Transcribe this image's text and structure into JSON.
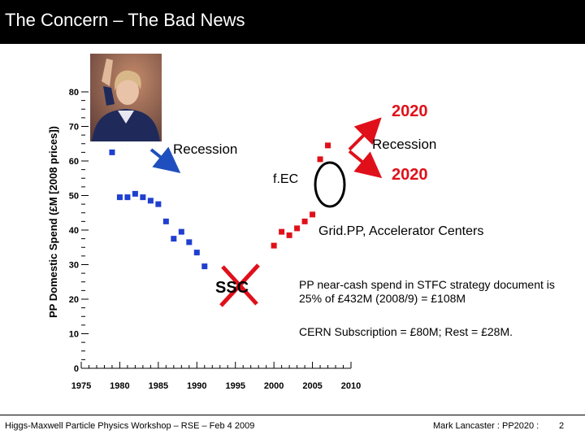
{
  "slide": {
    "title": "The Concern – The Bad News",
    "footer_left": "Higgs-Maxwell Particle Physics Workshop – RSE – Feb 4 2009",
    "footer_right": "Mark Lancaster : PP2020 :",
    "page_number": "2"
  },
  "annotations": {
    "recession_left": "Recession",
    "recession_right": "Recession",
    "fec": "f.EC",
    "label_2020_top": "2020",
    "label_2020_bottom": "2020",
    "gridpp": "Grid.PP, Accelerator Centers",
    "ssc": "SSC",
    "note_1": "PP near-cash spend in STFC strategy document is 25% of £432M (2008/9) = £108M",
    "note_2": "CERN Subscription = £80M; Rest = £28M."
  },
  "colors": {
    "early_series": "#1f3fcf",
    "recent_series": "#e0101a",
    "arrow_blue": "#1f4fbf",
    "arrow_red": "#e0101a",
    "cross_red": "#e0101a"
  },
  "chart_data": {
    "type": "scatter",
    "ylabel": "PP Domestic Spend (£M [2008 prices])",
    "xlabel": "",
    "xlim": [
      1975,
      2010
    ],
    "ylim": [
      0,
      80
    ],
    "x_ticks": [
      1975,
      1980,
      1985,
      1990,
      1995,
      2000,
      2005,
      2010
    ],
    "y_ticks": [
      0,
      10,
      20,
      30,
      40,
      50,
      60,
      70,
      80
    ],
    "series": [
      {
        "color": "#1f3fcf",
        "points": [
          [
            1979,
            62.5
          ],
          [
            1980,
            49.5
          ],
          [
            1981,
            49.5
          ],
          [
            1982,
            50.5
          ],
          [
            1983,
            49.5
          ],
          [
            1984,
            48.5
          ],
          [
            1985,
            47.5
          ],
          [
            1986,
            42.5
          ],
          [
            1987,
            37.5
          ],
          [
            1988,
            39.5
          ],
          [
            1989,
            36.5
          ],
          [
            1990,
            33.5
          ],
          [
            1991,
            29.5
          ]
        ]
      },
      {
        "color": "#e0101a",
        "points": [
          [
            2000,
            35.5
          ],
          [
            2001,
            39.5
          ],
          [
            2002,
            38.5
          ],
          [
            2003,
            40.5
          ],
          [
            2004,
            42.5
          ],
          [
            2005,
            44.5
          ],
          [
            2006,
            60.5
          ],
          [
            2007,
            64.5
          ]
        ]
      }
    ]
  }
}
